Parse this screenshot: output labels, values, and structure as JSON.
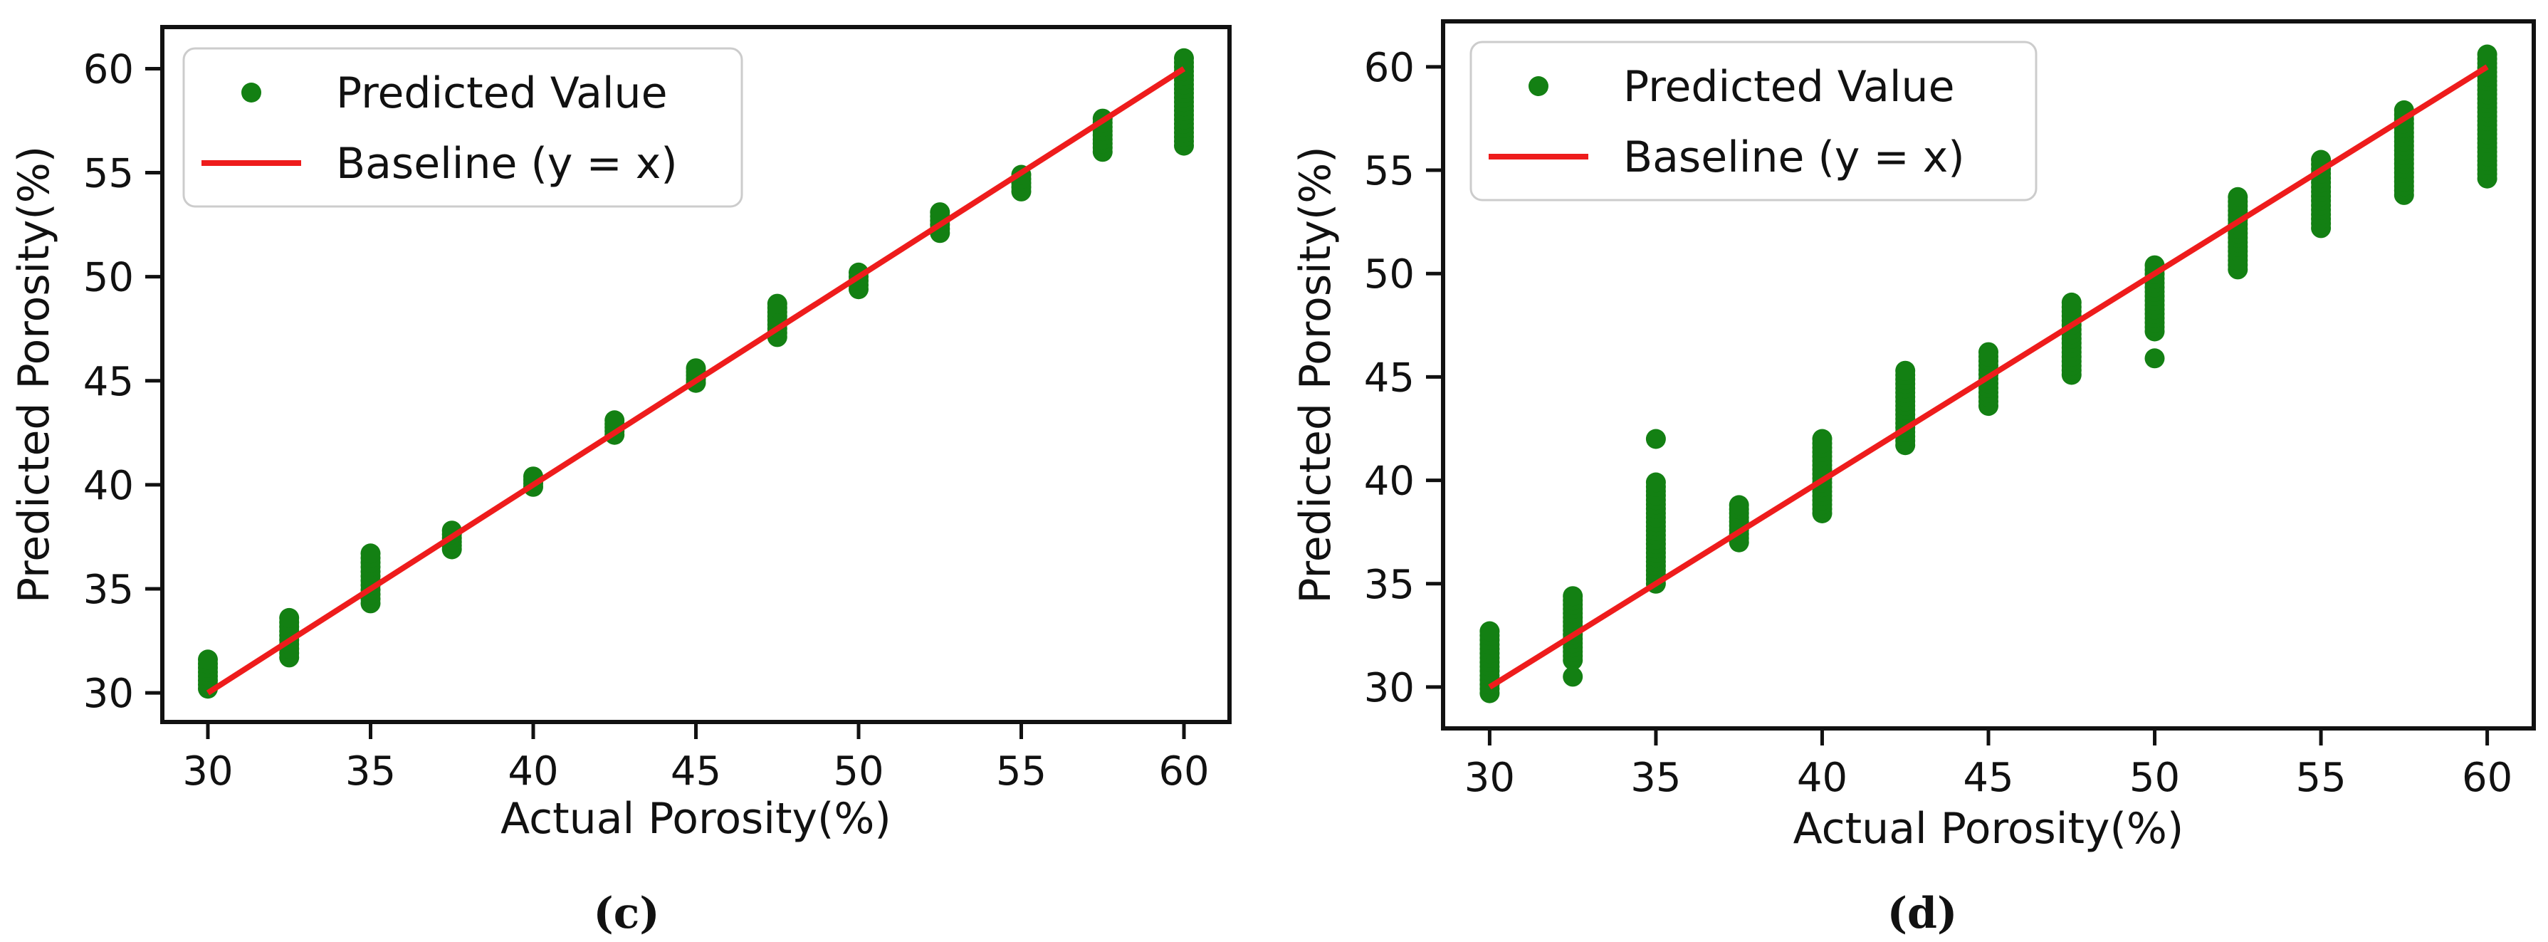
{
  "colors": {
    "points": "#138013",
    "baseline": "#ee1c1c",
    "axis": "#111111"
  },
  "chart_data": [
    {
      "type": "scatter",
      "panel_label": "(c)",
      "xlabel": "Actual Porosity(%)",
      "ylabel": "Predicted Porosity(%)",
      "xlim": [
        28.6,
        61.4
      ],
      "ylim": [
        28.6,
        62.0
      ],
      "xticks": [
        30,
        35,
        40,
        45,
        50,
        55,
        60
      ],
      "yticks": [
        30,
        35,
        40,
        45,
        50,
        55,
        60
      ],
      "legend": {
        "position": "upper-left",
        "entries": [
          {
            "label": "Predicted Value",
            "marker": "point"
          },
          {
            "label": "Baseline (y = x)",
            "marker": "line"
          }
        ]
      },
      "baseline": {
        "from": [
          30,
          30
        ],
        "to": [
          60,
          60
        ]
      },
      "groups": [
        {
          "x": 30,
          "y_min": 30.2,
          "y_max": 31.6
        },
        {
          "x": 32.5,
          "y_min": 31.7,
          "y_max": 33.6
        },
        {
          "x": 35,
          "y_min": 34.3,
          "y_max": 36.7
        },
        {
          "x": 37.5,
          "y_min": 36.9,
          "y_max": 37.8
        },
        {
          "x": 40,
          "y_min": 39.9,
          "y_max": 40.4
        },
        {
          "x": 42.5,
          "y_min": 42.4,
          "y_max": 43.1
        },
        {
          "x": 45,
          "y_min": 44.9,
          "y_max": 45.6
        },
        {
          "x": 47.5,
          "y_min": 47.1,
          "y_max": 48.7
        },
        {
          "x": 50,
          "y_min": 49.4,
          "y_max": 50.2
        },
        {
          "x": 52.5,
          "y_min": 52.1,
          "y_max": 53.1
        },
        {
          "x": 55,
          "y_min": 54.1,
          "y_max": 54.9
        },
        {
          "x": 57.5,
          "y_min": 56.0,
          "y_max": 57.6
        },
        {
          "x": 60,
          "y_min": 56.3,
          "y_max": 60.5
        }
      ]
    },
    {
      "type": "scatter",
      "panel_label": "(d)",
      "xlabel": "Actual Porosity(%)",
      "ylabel": "Predicted Porosity(%)",
      "xlim": [
        28.6,
        61.4
      ],
      "ylim": [
        28.0,
        62.2
      ],
      "xticks": [
        30,
        35,
        40,
        45,
        50,
        55,
        60
      ],
      "yticks": [
        30,
        35,
        40,
        45,
        50,
        55,
        60
      ],
      "legend": {
        "position": "upper-left",
        "entries": [
          {
            "label": "Predicted Value",
            "marker": "point"
          },
          {
            "label": "Baseline (y = x)",
            "marker": "line"
          }
        ]
      },
      "baseline": {
        "from": [
          30,
          30
        ],
        "to": [
          60,
          60
        ]
      },
      "groups": [
        {
          "x": 30,
          "y_min": 29.7,
          "y_max": 32.7
        },
        {
          "x": 32.5,
          "y_min": 31.3,
          "y_max": 34.4,
          "outliers": [
            30.5
          ]
        },
        {
          "x": 35,
          "y_min": 35.0,
          "y_max": 39.9,
          "outliers": [
            42.0
          ]
        },
        {
          "x": 37.5,
          "y_min": 37.0,
          "y_max": 38.8
        },
        {
          "x": 40,
          "y_min": 38.4,
          "y_max": 42.0
        },
        {
          "x": 42.5,
          "y_min": 41.7,
          "y_max": 45.3
        },
        {
          "x": 45,
          "y_min": 43.6,
          "y_max": 46.2
        },
        {
          "x": 47.5,
          "y_min": 45.1,
          "y_max": 48.6
        },
        {
          "x": 50,
          "y_min": 47.2,
          "y_max": 50.4,
          "outliers": [
            45.9
          ]
        },
        {
          "x": 52.5,
          "y_min": 50.2,
          "y_max": 53.7
        },
        {
          "x": 55,
          "y_min": 52.2,
          "y_max": 55.5
        },
        {
          "x": 57.5,
          "y_min": 53.8,
          "y_max": 57.9
        },
        {
          "x": 60,
          "y_min": 54.6,
          "y_max": 60.6
        }
      ]
    }
  ]
}
